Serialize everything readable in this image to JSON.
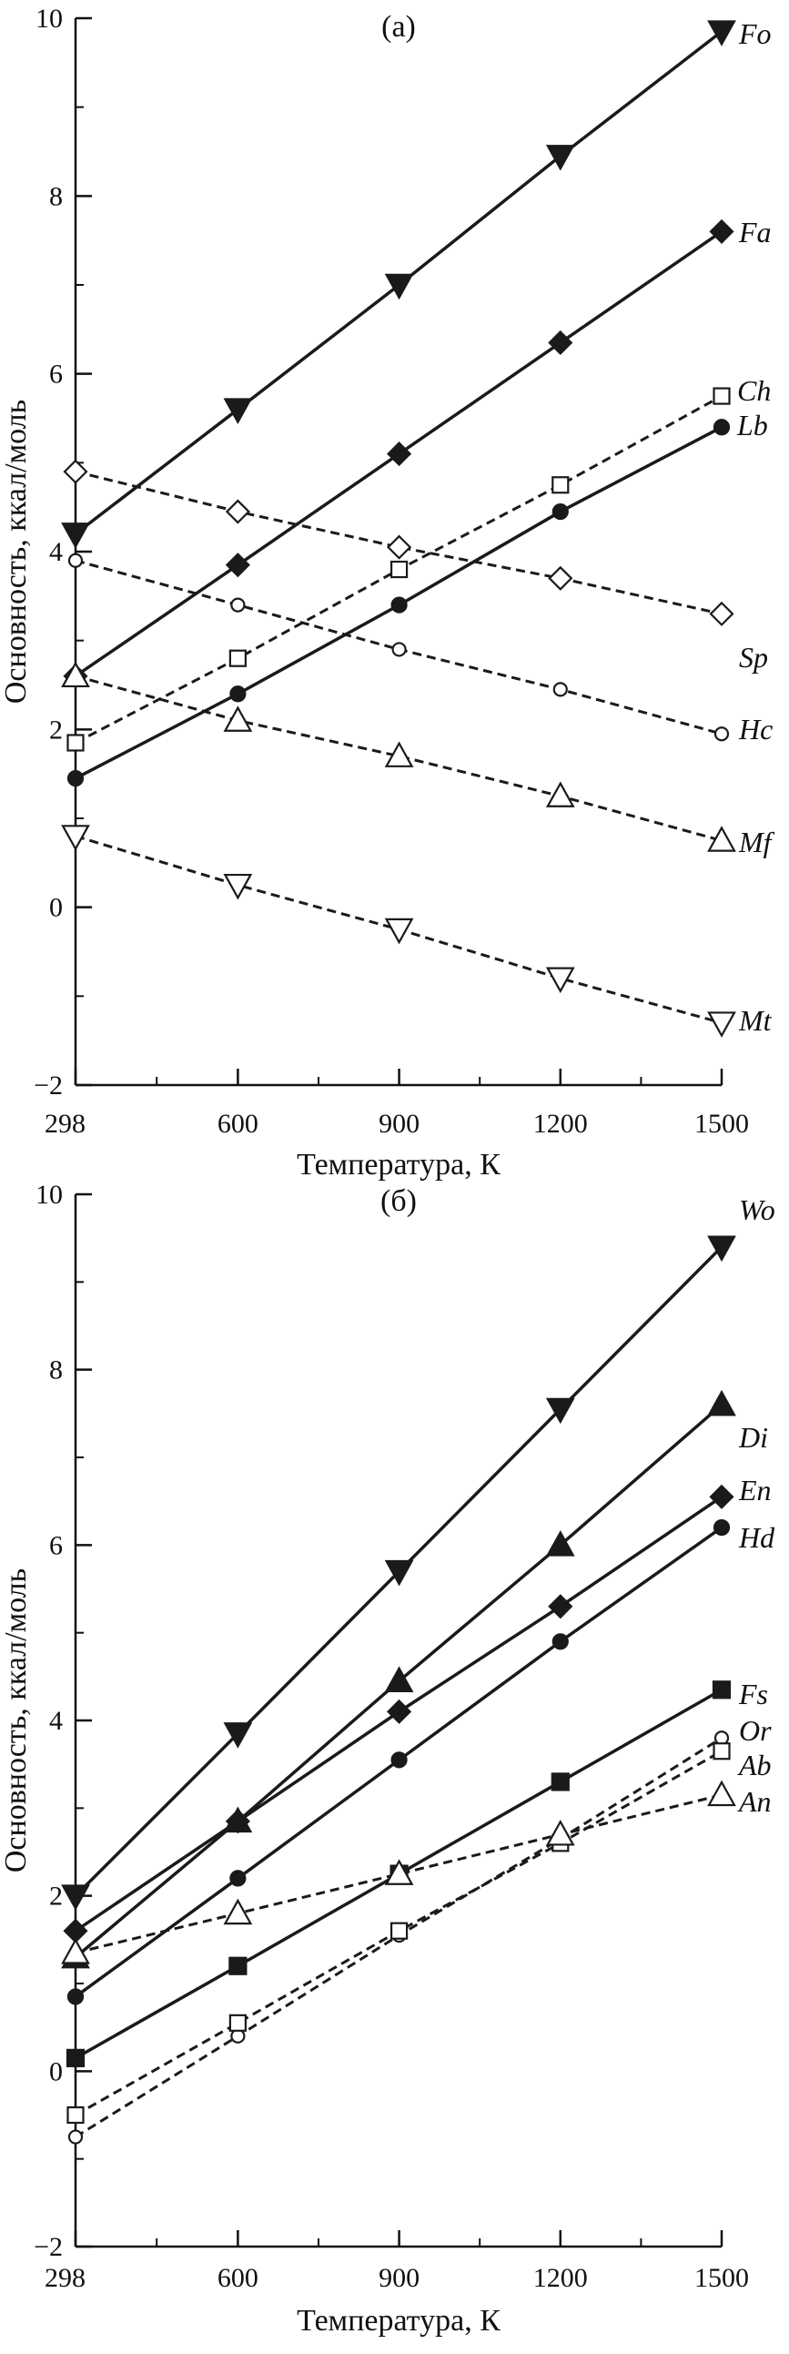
{
  "chart_data": [
    {
      "type": "line",
      "panel_label": "(а)",
      "xlabel": "Температура, К",
      "ylabel": "Основность, ккал/моль",
      "x": [
        298,
        600,
        900,
        1200,
        1500
      ],
      "x_ticks": [
        "298",
        "600",
        "900",
        "1200",
        "1500"
      ],
      "ylim": [
        -2,
        10
      ],
      "y_ticks": [
        "−2",
        "0",
        "2",
        "4",
        "6",
        "8",
        "10"
      ],
      "grid": false,
      "series": [
        {
          "name": "Fo",
          "values": [
            4.2,
            5.6,
            7.0,
            8.45,
            9.85
          ],
          "marker": "triangle-down-filled",
          "line": "solid"
        },
        {
          "name": "Fa",
          "values": [
            2.6,
            3.85,
            5.1,
            6.35,
            7.6
          ],
          "marker": "diamond-filled",
          "line": "solid"
        },
        {
          "name": "Ch",
          "values": [
            1.85,
            2.8,
            3.8,
            4.75,
            5.75
          ],
          "marker": "square-open",
          "line": "dashed"
        },
        {
          "name": "Lb",
          "values": [
            1.45,
            2.4,
            3.4,
            4.45,
            5.4
          ],
          "marker": "circle-filled",
          "line": "solid"
        },
        {
          "name": "Sp",
          "values": [
            4.9,
            4.45,
            4.05,
            3.7,
            3.3
          ],
          "marker": "diamond-open",
          "line": "dashed"
        },
        {
          "name": "Hc",
          "values": [
            3.9,
            3.4,
            2.9,
            2.45,
            1.95
          ],
          "marker": "circle-open",
          "line": "dashed"
        },
        {
          "name": "Mf",
          "values": [
            2.6,
            2.1,
            1.7,
            1.25,
            0.75
          ],
          "marker": "triangle-up-open",
          "line": "dashed"
        },
        {
          "name": "Mt",
          "values": [
            0.8,
            0.25,
            -0.25,
            -0.8,
            -1.3
          ],
          "marker": "triangle-down-open",
          "line": "dashed"
        }
      ]
    },
    {
      "type": "line",
      "panel_label": "(б)",
      "xlabel": "Температура, К",
      "ylabel": "Основность, ккал/моль",
      "x": [
        298,
        600,
        900,
        1200,
        1500
      ],
      "x_ticks": [
        "298",
        "600",
        "900",
        "1200",
        "1500"
      ],
      "ylim": [
        -2,
        10
      ],
      "y_ticks": [
        "−2",
        "0",
        "2",
        "4",
        "6",
        "8",
        "10"
      ],
      "grid": false,
      "series": [
        {
          "name": "Wo",
          "values": [
            2.0,
            3.85,
            5.7,
            7.55,
            9.4
          ],
          "marker": "triangle-down-filled",
          "line": "solid"
        },
        {
          "name": "Di",
          "values": [
            1.3,
            2.85,
            4.45,
            6.0,
            7.6
          ],
          "marker": "triangle-up-filled",
          "line": "solid"
        },
        {
          "name": "En",
          "values": [
            1.6,
            2.85,
            4.1,
            5.3,
            6.55
          ],
          "marker": "diamond-filled",
          "line": "solid"
        },
        {
          "name": "Hd",
          "values": [
            0.85,
            2.2,
            3.55,
            4.9,
            6.2
          ],
          "marker": "circle-filled",
          "line": "solid"
        },
        {
          "name": "Fs",
          "values": [
            0.15,
            1.2,
            2.25,
            3.3,
            4.35
          ],
          "marker": "square-filled",
          "line": "solid"
        },
        {
          "name": "Or",
          "values": [
            -0.75,
            0.4,
            1.55,
            2.65,
            3.8
          ],
          "marker": "circle-open",
          "line": "dashed"
        },
        {
          "name": "Ab",
          "values": [
            -0.5,
            0.55,
            1.6,
            2.6,
            3.65
          ],
          "marker": "square-open",
          "line": "dashed"
        },
        {
          "name": "An",
          "values": [
            1.35,
            1.8,
            2.25,
            2.7,
            3.15
          ],
          "marker": "triangle-up-open",
          "line": "dashed"
        }
      ]
    }
  ]
}
